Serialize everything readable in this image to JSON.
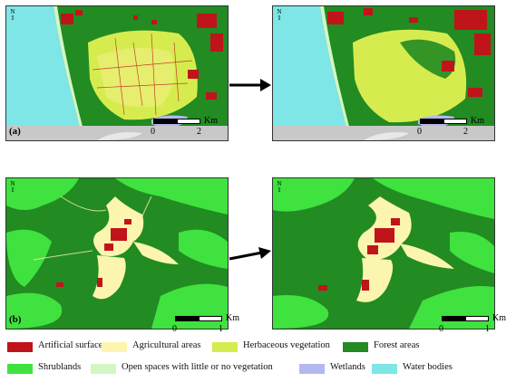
{
  "panels": [
    {
      "label": "(a)",
      "scale": {
        "unit": "Km",
        "ticks": [
          "0",
          "2"
        ]
      }
    },
    {
      "label": "(b)",
      "scale": {
        "unit": "Km",
        "ticks": [
          "0",
          "1"
        ]
      }
    }
  ],
  "north_symbol": "N",
  "colors": {
    "artificial": "#c0141b",
    "agricultural": "#fbf5b0",
    "herbaceous": "#d6ec4e",
    "forest": "#228b22",
    "shrublands": "#3fe23f",
    "open": "#d3f7c4",
    "wetlands": "#b4b8f0",
    "water": "#7ee6e6",
    "nodata": "#c8c8c8"
  },
  "legend": [
    {
      "label": "Artificial surfaces",
      "color": "#c0141b"
    },
    {
      "label": "Agricultural areas",
      "color": "#fbf5b0"
    },
    {
      "label": "Herbaceous vegetation",
      "color": "#d6ec4e"
    },
    {
      "label": "Forest areas",
      "color": "#228b22"
    },
    {
      "label": "Shrublands",
      "color": "#3fe23f"
    },
    {
      "label": "Open spaces with little or no vegetation",
      "color": "#d3f7c4"
    },
    {
      "label": "Wetlands",
      "color": "#b4b8f0"
    },
    {
      "label": "Water bodies",
      "color": "#7ee6e6"
    }
  ]
}
